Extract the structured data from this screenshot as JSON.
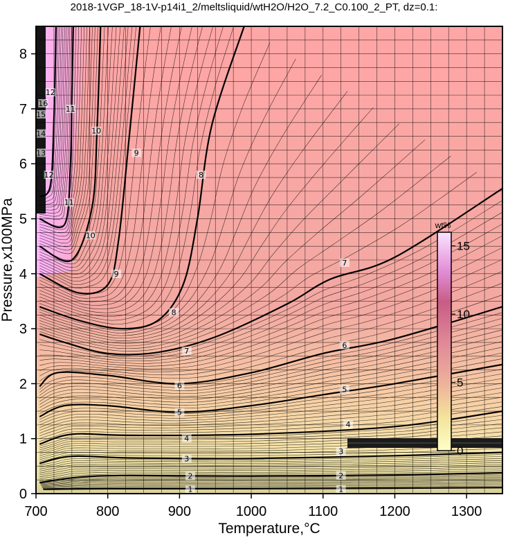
{
  "title": "2018-1VGP_18-1V-p14i1_2/meltsliquid/wtH2O/H2O_7.2_C0.100_2_PT, dz=0.1:",
  "colorbar": {
    "unit": "wt%",
    "ticks": [
      "0",
      "5",
      "10",
      "15"
    ],
    "range": [
      0,
      16
    ]
  },
  "colors": {
    "low": "#fffbcf",
    "mid": "#f1b7a3",
    "high": "#ffa8a4",
    "max": "#fbc4ff",
    "grid": "#000000",
    "frame": "#000000",
    "bandLow": "#c9c18f",
    "bandDark": "#2a2a2a"
  },
  "chart_data": {
    "type": "heatmap",
    "title": "2018-1VGP_18-1V-p14i1_2/meltsliquid/wtH2O/H2O_7.2_C0.100_2_PT, dz=0.1:",
    "xlabel": "Temperature,°C",
    "ylabel": "Pressure,x100MPa",
    "xlim": [
      700,
      1350
    ],
    "ylim": [
      0,
      8.5
    ],
    "xticks": [
      "700",
      "800",
      "900",
      "1000",
      "1100",
      "1200",
      "1300"
    ],
    "yticks": [
      "0",
      "1",
      "2",
      "3",
      "4",
      "5",
      "6",
      "7",
      "8"
    ],
    "x_grid_step": 25,
    "y_grid_step": 0.25,
    "z_label": "wt%",
    "contour_interval": 0.1,
    "labeled_contours": [
      {
        "level": 1,
        "points": [
          [
            710,
            0.08
          ],
          [
            800,
            0.09
          ],
          [
            1000,
            0.09
          ],
          [
            1200,
            0.1
          ],
          [
            1350,
            0.11
          ]
        ],
        "labels": [
          [
            915,
            0.08
          ],
          [
            1125,
            0.08
          ]
        ]
      },
      {
        "level": 2,
        "points": [
          [
            705,
            0.2
          ],
          [
            760,
            0.3
          ],
          [
            830,
            0.33
          ],
          [
            1000,
            0.32
          ],
          [
            1200,
            0.34
          ],
          [
            1350,
            0.38
          ]
        ],
        "labels": [
          [
            915,
            0.32
          ],
          [
            1125,
            0.33
          ]
        ]
      },
      {
        "level": 3,
        "points": [
          [
            705,
            0.55
          ],
          [
            750,
            0.68
          ],
          [
            830,
            0.65
          ],
          [
            1000,
            0.64
          ],
          [
            1200,
            0.69
          ],
          [
            1350,
            0.75
          ]
        ],
        "labels": [
          [
            910,
            0.64
          ],
          [
            1125,
            0.77
          ]
        ]
      },
      {
        "level": 4,
        "points": [
          [
            705,
            0.9
          ],
          [
            750,
            1.08
          ],
          [
            830,
            1.06
          ],
          [
            1000,
            1.08
          ],
          [
            1200,
            1.22
          ],
          [
            1350,
            1.5
          ]
        ],
        "labels": [
          [
            910,
            1.01
          ],
          [
            1135,
            1.26
          ]
        ]
      },
      {
        "level": 5,
        "points": [
          [
            705,
            1.4
          ],
          [
            740,
            1.6
          ],
          [
            800,
            1.6
          ],
          [
            900,
            1.48
          ],
          [
            1000,
            1.6
          ],
          [
            1100,
            1.8
          ],
          [
            1200,
            2.0
          ],
          [
            1350,
            2.35
          ]
        ],
        "labels": [
          [
            900,
            1.48
          ],
          [
            1130,
            1.9
          ]
        ]
      },
      {
        "level": 6,
        "points": [
          [
            705,
            1.95
          ],
          [
            730,
            2.2
          ],
          [
            800,
            2.15
          ],
          [
            900,
            2.0
          ],
          [
            1000,
            2.2
          ],
          [
            1100,
            2.55
          ],
          [
            1200,
            2.82
          ],
          [
            1350,
            3.4
          ]
        ],
        "labels": [
          [
            900,
            1.97
          ],
          [
            1130,
            2.7
          ]
        ]
      },
      {
        "level": 7,
        "points": [
          [
            705,
            2.9
          ],
          [
            740,
            2.75
          ],
          [
            800,
            2.55
          ],
          [
            870,
            2.57
          ],
          [
            950,
            2.85
          ],
          [
            1050,
            3.45
          ],
          [
            1110,
            3.9
          ],
          [
            1200,
            4.3
          ],
          [
            1350,
            5.55
          ]
        ],
        "labels": [
          [
            910,
            2.6
          ],
          [
            1130,
            4.2
          ]
        ]
      },
      {
        "level": 8,
        "points": [
          [
            705,
            3.4
          ],
          [
            760,
            3.15
          ],
          [
            820,
            3.0
          ],
          [
            870,
            3.15
          ],
          [
            905,
            3.8
          ],
          [
            925,
            5.0
          ],
          [
            945,
            6.7
          ],
          [
            990,
            8.5
          ]
        ],
        "labels": [
          [
            892,
            3.3
          ],
          [
            930,
            5.8
          ]
        ]
      },
      {
        "level": 9,
        "points": [
          [
            705,
            4.0
          ],
          [
            760,
            3.65
          ],
          [
            800,
            3.8
          ],
          [
            815,
            4.6
          ],
          [
            830,
            6.5
          ],
          [
            845,
            8.5
          ]
        ],
        "labels": [
          [
            812,
            4.0
          ],
          [
            840,
            6.2
          ]
        ]
      },
      {
        "level": 10,
        "points": [
          [
            705,
            4.5
          ],
          [
            750,
            4.25
          ],
          [
            778,
            5.2
          ],
          [
            785,
            6.6
          ],
          [
            790,
            8.5
          ]
        ],
        "labels": [
          [
            776,
            4.7
          ],
          [
            784,
            6.6
          ]
        ]
      },
      {
        "level": 11,
        "points": [
          [
            705,
            5.0
          ],
          [
            740,
            4.9
          ],
          [
            748,
            6.0
          ],
          [
            750,
            7.2
          ],
          [
            752,
            8.5
          ]
        ],
        "labels": [
          [
            746,
            5.3
          ],
          [
            748,
            7.0
          ]
        ]
      },
      {
        "level": 12,
        "points": [
          [
            705,
            5.4
          ],
          [
            720,
            5.6
          ],
          [
            725,
            6.8
          ],
          [
            728,
            8.5
          ]
        ],
        "labels": [
          [
            718,
            5.8
          ],
          [
            720,
            7.3
          ]
        ]
      }
    ],
    "secondary_labels": [
      {
        "level": "13",
        "x": 705,
        "y": 6.2
      },
      {
        "level": "14",
        "x": 705,
        "y": 6.55
      },
      {
        "level": "15",
        "x": 705,
        "y": 6.9
      },
      {
        "level": "16",
        "x": 708,
        "y": 7.1
      }
    ],
    "color_regions": [
      {
        "description": "low-pressure yellow band",
        "value": 0.5,
        "ylim": [
          0,
          1.0
        ]
      },
      {
        "description": "mid band",
        "value": 4,
        "ylim": [
          1.0,
          3.0
        ]
      },
      {
        "description": "upper region",
        "value": 8,
        "ylim": [
          3.0,
          8.5
        ]
      },
      {
        "description": "high-water corner",
        "value": 14,
        "xlim": [
          700,
          740
        ],
        "ylim": [
          4.0,
          8.5
        ]
      }
    ],
    "grid": true
  }
}
